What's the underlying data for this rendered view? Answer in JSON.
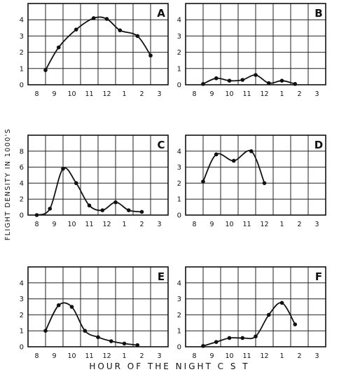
{
  "figure": {
    "ylabel": "FLIGHT DENSITY IN 1000'S",
    "xlabel": "HOUR OF THE NIGHT  C S T"
  },
  "chart_data": [
    {
      "type": "line",
      "panel": "A",
      "x_ticks": [
        "8",
        "9",
        "10",
        "11",
        "12",
        "1",
        "2",
        "3"
      ],
      "y_ticks": [
        "0",
        "1",
        "2",
        "3",
        "4"
      ],
      "ylim": [
        0,
        5
      ],
      "grid": true,
      "points": [
        [
          8.5,
          0.9
        ],
        [
          9.25,
          2.3
        ],
        [
          10.25,
          3.4
        ],
        [
          11.25,
          4.1
        ],
        [
          12.0,
          4.05
        ],
        [
          12.75,
          3.35
        ],
        [
          13.75,
          3.0
        ],
        [
          14.5,
          1.8
        ]
      ]
    },
    {
      "type": "line",
      "panel": "B",
      "x_ticks": [
        "8",
        "9",
        "10",
        "11",
        "12",
        "1",
        "2",
        "3"
      ],
      "y_ticks": [
        "0",
        "1",
        "2",
        "3",
        "4"
      ],
      "ylim": [
        0,
        5
      ],
      "grid": true,
      "points": [
        [
          8.5,
          0.05
        ],
        [
          9.25,
          0.4
        ],
        [
          10.0,
          0.25
        ],
        [
          10.75,
          0.3
        ],
        [
          11.5,
          0.6
        ],
        [
          12.25,
          0.1
        ],
        [
          13.0,
          0.25
        ],
        [
          13.75,
          0.05
        ]
      ]
    },
    {
      "type": "line",
      "panel": "C",
      "x_ticks": [
        "8",
        "9",
        "10",
        "11",
        "12",
        "1",
        "2",
        "3"
      ],
      "y_ticks": [
        "0",
        "2",
        "4",
        "6",
        "8"
      ],
      "ylim": [
        0,
        10
      ],
      "grid": true,
      "points": [
        [
          8.0,
          0.0
        ],
        [
          8.75,
          0.8
        ],
        [
          9.5,
          5.8
        ],
        [
          10.25,
          4.0
        ],
        [
          11.0,
          1.2
        ],
        [
          11.75,
          0.6
        ],
        [
          12.5,
          1.6
        ],
        [
          13.25,
          0.6
        ],
        [
          14.0,
          0.4
        ]
      ]
    },
    {
      "type": "line",
      "panel": "D",
      "x_ticks": [
        "8",
        "9",
        "10",
        "11",
        "12",
        "1",
        "2",
        "3"
      ],
      "y_ticks": [
        "0",
        "1",
        "2",
        "3",
        "4"
      ],
      "ylim": [
        0,
        5
      ],
      "grid": true,
      "points": [
        [
          8.5,
          2.1
        ],
        [
          9.25,
          3.8
        ],
        [
          10.25,
          3.4
        ],
        [
          11.25,
          4.0
        ],
        [
          12.0,
          2.0
        ]
      ]
    },
    {
      "type": "line",
      "panel": "E",
      "x_ticks": [
        "8",
        "9",
        "10",
        "11",
        "12",
        "1",
        "2",
        "3"
      ],
      "y_ticks": [
        "0",
        "1",
        "2",
        "3",
        "4"
      ],
      "ylim": [
        0,
        5
      ],
      "grid": true,
      "points": [
        [
          8.5,
          1.0
        ],
        [
          9.25,
          2.6
        ],
        [
          10.0,
          2.5
        ],
        [
          10.75,
          1.0
        ],
        [
          11.5,
          0.6
        ],
        [
          12.25,
          0.35
        ],
        [
          13.0,
          0.2
        ],
        [
          13.75,
          0.1
        ]
      ]
    },
    {
      "type": "line",
      "panel": "F",
      "x_ticks": [
        "8",
        "9",
        "10",
        "11",
        "12",
        "1",
        "2",
        "3"
      ],
      "y_ticks": [
        "0",
        "1",
        "2",
        "3",
        "4"
      ],
      "ylim": [
        0,
        5
      ],
      "grid": true,
      "points": [
        [
          8.5,
          0.05
        ],
        [
          9.25,
          0.3
        ],
        [
          10.0,
          0.55
        ],
        [
          10.75,
          0.55
        ],
        [
          11.5,
          0.65
        ],
        [
          12.25,
          2.0
        ],
        [
          13.0,
          2.75
        ],
        [
          13.75,
          1.4
        ]
      ]
    }
  ]
}
